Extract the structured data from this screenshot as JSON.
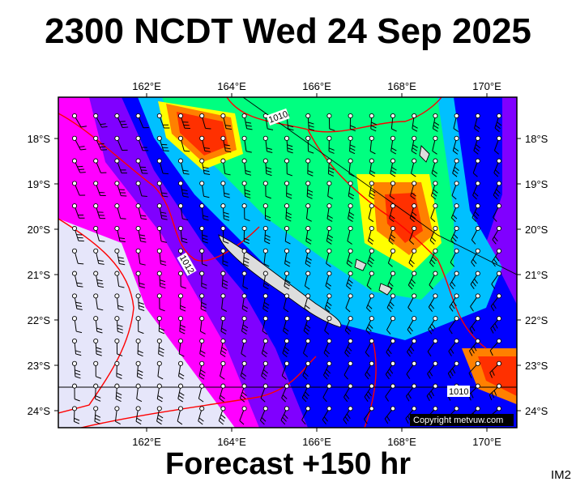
{
  "title": "2300 NCDT Wed 24 Sep 2025",
  "subtitle": "Forecast +150 hr",
  "corner_label": "IM2",
  "copyright": "Copyright metvuw.com",
  "map": {
    "lon_labels": [
      "162°E",
      "164°E",
      "166°E",
      "168°E",
      "170°E"
    ],
    "lat_labels": [
      "18°S",
      "19°S",
      "20°S",
      "21°S",
      "22°S",
      "23°S",
      "24°S"
    ],
    "isobar_labels": [
      "1010",
      "1012",
      "1010"
    ],
    "colors": {
      "calm": "#e6e6fa",
      "light": "#ff00ff",
      "moderate": "#8000ff",
      "fresh": "#0000ff",
      "strong": "#00c0ff",
      "gale": "#00ff80",
      "severe": "#ffff00",
      "storm": "#ff8000",
      "violent": "#ff3000",
      "isobar": "#ff0000"
    }
  }
}
